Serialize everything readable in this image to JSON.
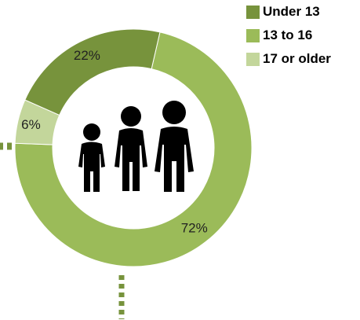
{
  "chart_data": {
    "type": "pie",
    "style": "donut",
    "categories": [
      "Under 13",
      "13 to 16",
      "17 or older"
    ],
    "values": [
      22,
      72,
      6
    ],
    "labels": [
      "22%",
      "72%",
      "6%"
    ],
    "colors": [
      "#77933c",
      "#9bbb59",
      "#c3d69b"
    ],
    "legend_position": "top-right",
    "center_icon": "family-silhouette-icon",
    "title": "",
    "xlabel": "",
    "ylabel": ""
  },
  "legend": {
    "items": [
      {
        "label": "Under 13",
        "color": "#77933c"
      },
      {
        "label": "13 to 16",
        "color": "#9bbb59"
      },
      {
        "label": "17 or older",
        "color": "#c3d69b"
      }
    ]
  },
  "colors": {
    "connector": "#77933c",
    "icon": "#000000"
  }
}
